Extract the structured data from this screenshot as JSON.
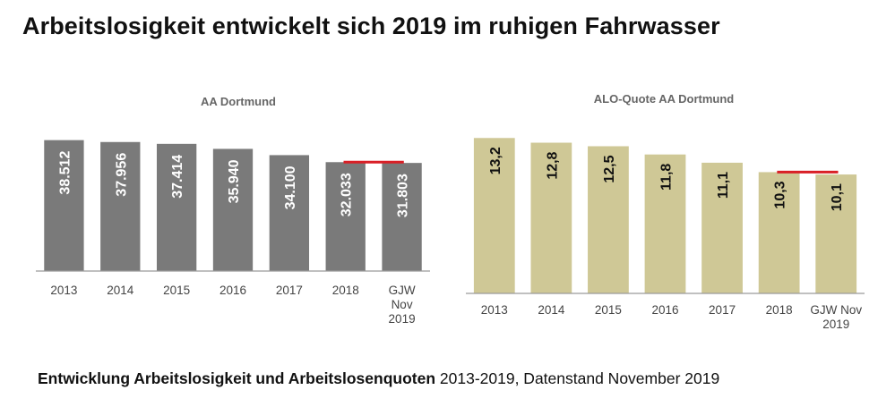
{
  "title": "Arbeitslosigkeit entwickelt sich 2019 im ruhigen Fahrwasser",
  "caption": {
    "bold": "Entwicklung Arbeitslosigkeit und Arbeitslosenquoten",
    "rest": " 2013-2019, Datenstand November 2019"
  },
  "colors": {
    "left_bar": "#7a7a7a",
    "right_bar": "#cfc896",
    "marker": "#d91f26",
    "axis": "#9a9a9a"
  },
  "chart_data": [
    {
      "type": "bar",
      "title": "AA Dortmund",
      "categories": [
        [
          "2013"
        ],
        [
          "2014"
        ],
        [
          "2015"
        ],
        [
          "2016"
        ],
        [
          "2017"
        ],
        [
          "2018"
        ],
        [
          "GJW",
          "Nov",
          "2019"
        ]
      ],
      "values": [
        38512,
        37956,
        37414,
        35940,
        34100,
        32033,
        31803
      ],
      "value_labels": [
        "38.512",
        "37.956",
        "37.414",
        "35.940",
        "34.100",
        "32.033",
        "31.803"
      ],
      "ylim": [
        0,
        40000
      ],
      "label_color": "#ffffff",
      "reference_line": {
        "from_category": 5,
        "to_category": 6,
        "value": 32033
      }
    },
    {
      "type": "bar",
      "title": "ALO-Quote AA Dortmund",
      "categories": [
        [
          "2013"
        ],
        [
          "2014"
        ],
        [
          "2015"
        ],
        [
          "2016"
        ],
        [
          "2017"
        ],
        [
          "2018"
        ],
        [
          "GJW Nov",
          "2019"
        ]
      ],
      "values": [
        13.2,
        12.8,
        12.5,
        11.8,
        11.1,
        10.3,
        10.1
      ],
      "value_labels": [
        "13,2",
        "12,8",
        "12,5",
        "11,8",
        "11,1",
        "10,3",
        "10,1"
      ],
      "ylim": [
        0,
        13.6
      ],
      "label_color": "#111111",
      "reference_line": {
        "from_category": 5,
        "to_category": 6,
        "value": 10.3
      }
    }
  ]
}
